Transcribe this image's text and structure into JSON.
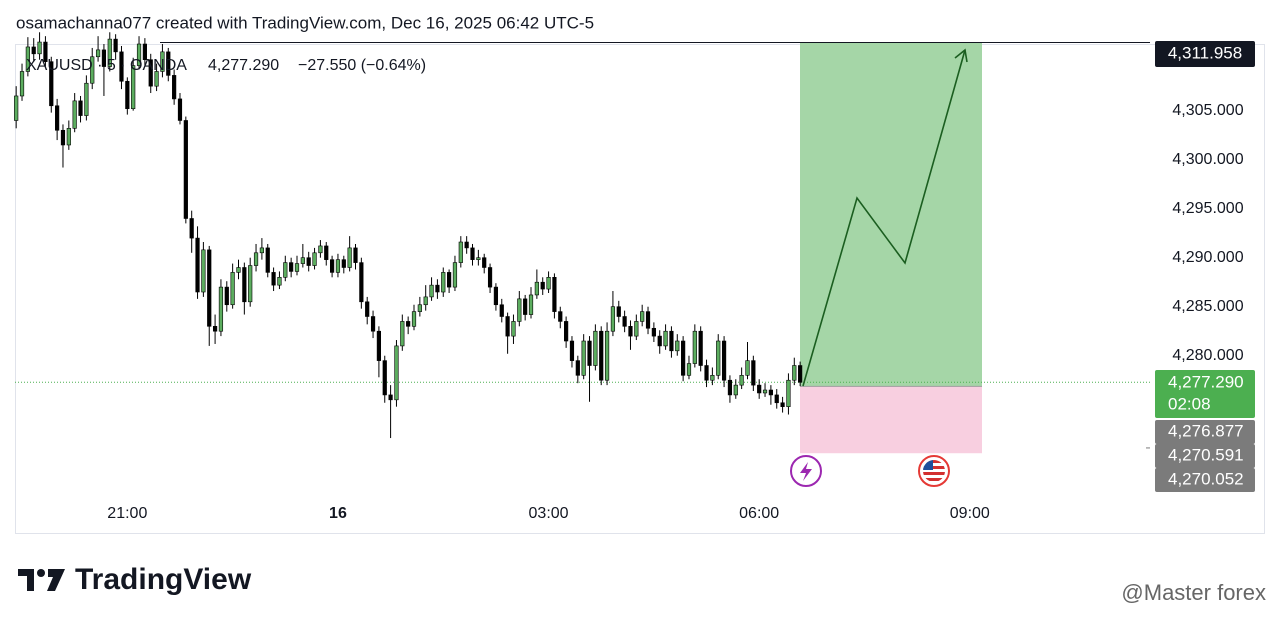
{
  "chart_data": {
    "type": "candlestick",
    "header": "osamachanna077 created with TradingView.com, Dec 16, 2025 06:42 UTC-5",
    "legend": {
      "symbol": "XAUUSD · 5 · OANDA",
      "price": "4,277.290",
      "change": "−27.550 (−0.64%)"
    },
    "brand": "TradingView",
    "watermark": "@Master forex",
    "up_color": "#5cad5f",
    "down_color": "#000000",
    "x": [
      -275,
      -270,
      -265,
      -260,
      -255,
      -250,
      -245,
      -240,
      -235,
      -230,
      -225,
      -220,
      -215,
      -210,
      -205,
      -200,
      -195,
      -190,
      -185,
      -180,
      -175,
      -170,
      -165,
      -160,
      -155,
      -150,
      -145,
      -140,
      -135,
      -130,
      -125,
      -120,
      -115,
      -110,
      -105,
      -100,
      -95,
      -90,
      -85,
      -80,
      -75,
      -70,
      -65,
      -60,
      -55,
      -50,
      -45,
      -40,
      -35,
      -30,
      -25,
      -20,
      -15,
      -10,
      -5,
      0,
      5,
      10,
      15,
      20,
      25,
      30,
      35,
      40,
      45,
      50,
      55,
      60,
      65,
      70,
      75,
      80,
      85,
      90,
      95,
      100,
      105,
      110,
      115,
      120,
      125,
      130,
      135,
      140,
      145,
      150,
      155,
      160,
      165,
      170,
      175,
      180,
      185,
      190,
      195,
      200,
      205,
      210,
      215,
      220,
      225,
      230,
      235,
      240,
      245,
      250,
      255,
      260,
      265,
      270,
      275,
      280,
      285,
      290,
      295,
      300,
      305,
      310,
      315,
      320,
      325,
      330,
      335,
      340,
      345,
      350,
      355,
      360,
      365,
      370,
      375,
      380,
      385,
      390,
      395
    ],
    "open": [
      4304.0,
      4306.5,
      4309.0,
      4311.5,
      4310.8,
      4312.0,
      4310.0,
      4305.5,
      4303.0,
      4301.5,
      4303.2,
      4306.0,
      4304.5,
      4307.8,
      4310.5,
      4311.2,
      4309.5,
      4312.3,
      4311.0,
      4308.0,
      4305.2,
      4309.6,
      4311.8,
      4310.2,
      4307.5,
      4309.0,
      4311.0,
      4308.6,
      4306.2,
      4304.0,
      4294.0,
      4292.0,
      4286.5,
      4290.8,
      4283.0,
      4282.5,
      4287.0,
      4285.2,
      4288.5,
      4289.0,
      4285.5,
      4289.2,
      4290.5,
      4291.0,
      4288.5,
      4287.2,
      4288.0,
      4289.5,
      4288.6,
      4289.4,
      4290.0,
      4289.2,
      4290.5,
      4291.2,
      4289.8,
      4288.5,
      4289.8,
      4289.0,
      4291.0,
      4289.5,
      4285.5,
      4284.0,
      4282.5,
      4279.5,
      4276.0,
      4275.5,
      4281.0,
      4283.5,
      4283.0,
      4284.5,
      4285.2,
      4286.0,
      4287.2,
      4286.5,
      4288.5,
      4287.0,
      4289.5,
      4291.6,
      4291.0,
      4289.8,
      4290.0,
      4289.0,
      4287.0,
      4285.2,
      4284.0,
      4282.0,
      4283.5,
      4285.8,
      4284.2,
      4286.2,
      4287.5,
      4286.8,
      4288.0,
      4284.5,
      4283.5,
      4281.5,
      4279.5,
      4278.0,
      4281.5,
      4279.0,
      4282.5,
      4277.5,
      4282.5,
      4285.0,
      4284.0,
      4283.0,
      4282.0,
      4283.5,
      4284.5,
      4282.8,
      4282.0,
      4281.0,
      4282.5,
      4280.5,
      4281.5,
      4278.0,
      4279.2,
      4282.5,
      4279.0,
      4277.5,
      4278.0,
      4281.5,
      4277.5,
      4276.0,
      4277.0,
      4278.0,
      4279.5,
      4277.0,
      4276.2,
      4276.5,
      4276.0,
      4275.2,
      4274.8,
      4277.5,
      4279.0
    ],
    "high": [
      4307.5,
      4309.8,
      4312.5,
      4312.4,
      4313.0,
      4312.6,
      4310.5,
      4306.2,
      4303.6,
      4304.0,
      4306.8,
      4306.5,
      4308.6,
      4311.4,
      4312.6,
      4311.8,
      4313.0,
      4312.8,
      4311.6,
      4308.4,
      4310.4,
      4312.6,
      4312.4,
      4310.8,
      4309.8,
      4311.8,
      4311.4,
      4309.2,
      4306.8,
      4304.4,
      4294.8,
      4293.2,
      4291.6,
      4291.2,
      4284.2,
      4287.8,
      4287.6,
      4289.4,
      4289.8,
      4289.5,
      4290.0,
      4291.4,
      4292.0,
      4291.4,
      4289.0,
      4288.6,
      4290.2,
      4290.0,
      4290.2,
      4291.4,
      4290.6,
      4291.0,
      4291.8,
      4291.6,
      4290.2,
      4290.4,
      4290.2,
      4292.2,
      4291.4,
      4290.0,
      4286.0,
      4284.6,
      4283.0,
      4280.0,
      4277.0,
      4281.6,
      4284.2,
      4284.0,
      4285.2,
      4286.0,
      4287.2,
      4288.0,
      4287.8,
      4289.0,
      4288.8,
      4290.2,
      4292.2,
      4292.2,
      4291.4,
      4290.8,
      4290.4,
      4289.4,
      4287.4,
      4285.8,
      4284.4,
      4284.2,
      4286.6,
      4286.2,
      4287.0,
      4288.8,
      4288.0,
      4288.6,
      4288.4,
      4285.0,
      4284.0,
      4282.0,
      4280.0,
      4282.2,
      4282.0,
      4283.2,
      4283.0,
      4283.4,
      4286.6,
      4285.6,
      4284.6,
      4283.6,
      4284.2,
      4285.2,
      4285.0,
      4283.4,
      4282.6,
      4283.2,
      4283.0,
      4282.2,
      4282.0,
      4280.0,
      4283.2,
      4283.0,
      4279.6,
      4278.8,
      4282.2,
      4282.0,
      4278.0,
      4277.6,
      4278.8,
      4281.4,
      4280.0,
      4277.6,
      4277.2,
      4277.0,
      4276.6,
      4275.8,
      4278.2,
      4279.8,
      4279.4
    ],
    "low": [
      4303.2,
      4306.0,
      4308.5,
      4310.0,
      4310.2,
      4309.5,
      4304.8,
      4302.0,
      4299.2,
      4301.0,
      4302.8,
      4303.8,
      4304.0,
      4307.2,
      4310.0,
      4306.5,
      4309.0,
      4310.2,
      4307.2,
      4304.6,
      4305.0,
      4309.2,
      4309.6,
      4306.8,
      4307.0,
      4308.4,
      4308.0,
      4305.6,
      4303.6,
      4293.5,
      4290.5,
      4285.8,
      4286.0,
      4281.0,
      4281.2,
      4282.0,
      4284.5,
      4284.8,
      4287.8,
      4284.2,
      4285.0,
      4288.6,
      4289.8,
      4288.0,
      4286.6,
      4286.8,
      4287.6,
      4288.0,
      4288.2,
      4289.0,
      4288.6,
      4288.8,
      4290.0,
      4289.2,
      4288.0,
      4288.0,
      4288.4,
      4288.6,
      4288.8,
      4284.8,
      4283.2,
      4281.8,
      4277.8,
      4275.2,
      4271.6,
      4274.8,
      4280.5,
      4282.2,
      4282.6,
      4284.0,
      4284.6,
      4285.6,
      4285.8,
      4286.0,
      4286.4,
      4286.6,
      4289.0,
      4290.4,
      4289.2,
      4289.2,
      4288.4,
      4286.4,
      4284.6,
      4283.4,
      4280.2,
      4281.2,
      4283.0,
      4283.6,
      4283.8,
      4285.8,
      4286.2,
      4286.4,
      4283.8,
      4282.8,
      4280.8,
      4278.8,
      4277.2,
      4277.6,
      4275.3,
      4278.5,
      4277.0,
      4277.0,
      4282.0,
      4283.4,
      4282.4,
      4280.6,
      4281.6,
      4283.0,
      4282.2,
      4281.4,
      4280.2,
      4280.6,
      4279.8,
      4280.0,
      4277.4,
      4277.6,
      4278.8,
      4278.4,
      4276.8,
      4277.0,
      4277.6,
      4276.8,
      4275.2,
      4275.6,
      4276.6,
      4277.6,
      4276.4,
      4275.6,
      4275.8,
      4275.0,
      4274.6,
      4274.2,
      4274.0,
      4277.0,
      4276.9
    ],
    "close": [
      4306.5,
      4309.0,
      4311.5,
      4310.8,
      4312.0,
      4310.0,
      4305.5,
      4303.0,
      4301.5,
      4303.2,
      4306.0,
      4304.5,
      4307.8,
      4310.5,
      4311.2,
      4309.5,
      4312.3,
      4311.0,
      4308.0,
      4305.2,
      4309.6,
      4311.8,
      4310.2,
      4307.5,
      4309.0,
      4311.0,
      4308.6,
      4306.2,
      4304.0,
      4294.0,
      4292.0,
      4286.5,
      4290.8,
      4283.0,
      4282.5,
      4287.0,
      4285.2,
      4288.5,
      4289.0,
      4285.5,
      4289.2,
      4290.5,
      4291.0,
      4288.5,
      4287.2,
      4288.0,
      4289.5,
      4288.6,
      4289.4,
      4290.0,
      4289.2,
      4290.5,
      4291.2,
      4289.8,
      4288.5,
      4289.8,
      4289.0,
      4291.0,
      4289.5,
      4285.5,
      4284.0,
      4282.5,
      4279.5,
      4276.0,
      4275.5,
      4281.0,
      4283.5,
      4283.0,
      4284.5,
      4285.2,
      4286.0,
      4287.2,
      4286.5,
      4288.5,
      4287.0,
      4289.5,
      4291.6,
      4291.0,
      4289.8,
      4290.0,
      4289.0,
      4287.0,
      4285.2,
      4284.0,
      4282.0,
      4283.5,
      4285.8,
      4284.2,
      4286.2,
      4287.5,
      4286.8,
      4288.0,
      4284.5,
      4283.5,
      4281.5,
      4279.5,
      4278.0,
      4281.5,
      4279.0,
      4282.5,
      4277.5,
      4282.5,
      4285.0,
      4284.0,
      4283.0,
      4282.0,
      4283.5,
      4284.5,
      4282.8,
      4282.0,
      4281.0,
      4282.5,
      4280.5,
      4281.5,
      4278.0,
      4279.2,
      4282.5,
      4279.0,
      4277.5,
      4278.0,
      4281.5,
      4277.5,
      4276.0,
      4277.0,
      4278.0,
      4279.5,
      4277.0,
      4276.2,
      4276.5,
      4276.0,
      4275.2,
      4274.8,
      4277.5,
      4279.0,
      4277.29
    ],
    "xlim": [
      -276,
      694
    ],
    "xticks": [
      {
        "value": -180,
        "label": "21:00"
      },
      {
        "value": 0,
        "label": "16"
      },
      {
        "value": 180,
        "label": "03:00"
      },
      {
        "value": 360,
        "label": "06:00"
      },
      {
        "value": 540,
        "label": "09:00"
      }
    ],
    "ylim": [
      4266.3,
      4311.7
    ],
    "yticks": [
      {
        "value": 4280,
        "label": "4,280.000"
      },
      {
        "value": 4285,
        "label": "4,285.000"
      },
      {
        "value": 4290,
        "label": "4,290.000"
      },
      {
        "value": 4295,
        "label": "4,295.000"
      },
      {
        "value": 4300,
        "label": "4,300.000"
      },
      {
        "value": 4305,
        "label": "4,305.000"
      }
    ],
    "last_price": {
      "value": 4277.29,
      "label": "4,277.290",
      "countdown": "02:08",
      "color": "#4caf50"
    },
    "position": {
      "target": {
        "value": 4311.958,
        "label": "4,311.958"
      },
      "entry": {
        "value": 4276.877,
        "label": "4,276.877"
      },
      "stop": {
        "value": 4270.052,
        "label": "4,270.052"
      },
      "profit_color": "#a5d6a7",
      "loss_color": "#f8cfe0"
    },
    "level": {
      "value": 4270.591,
      "label": "4,270.591"
    }
  }
}
